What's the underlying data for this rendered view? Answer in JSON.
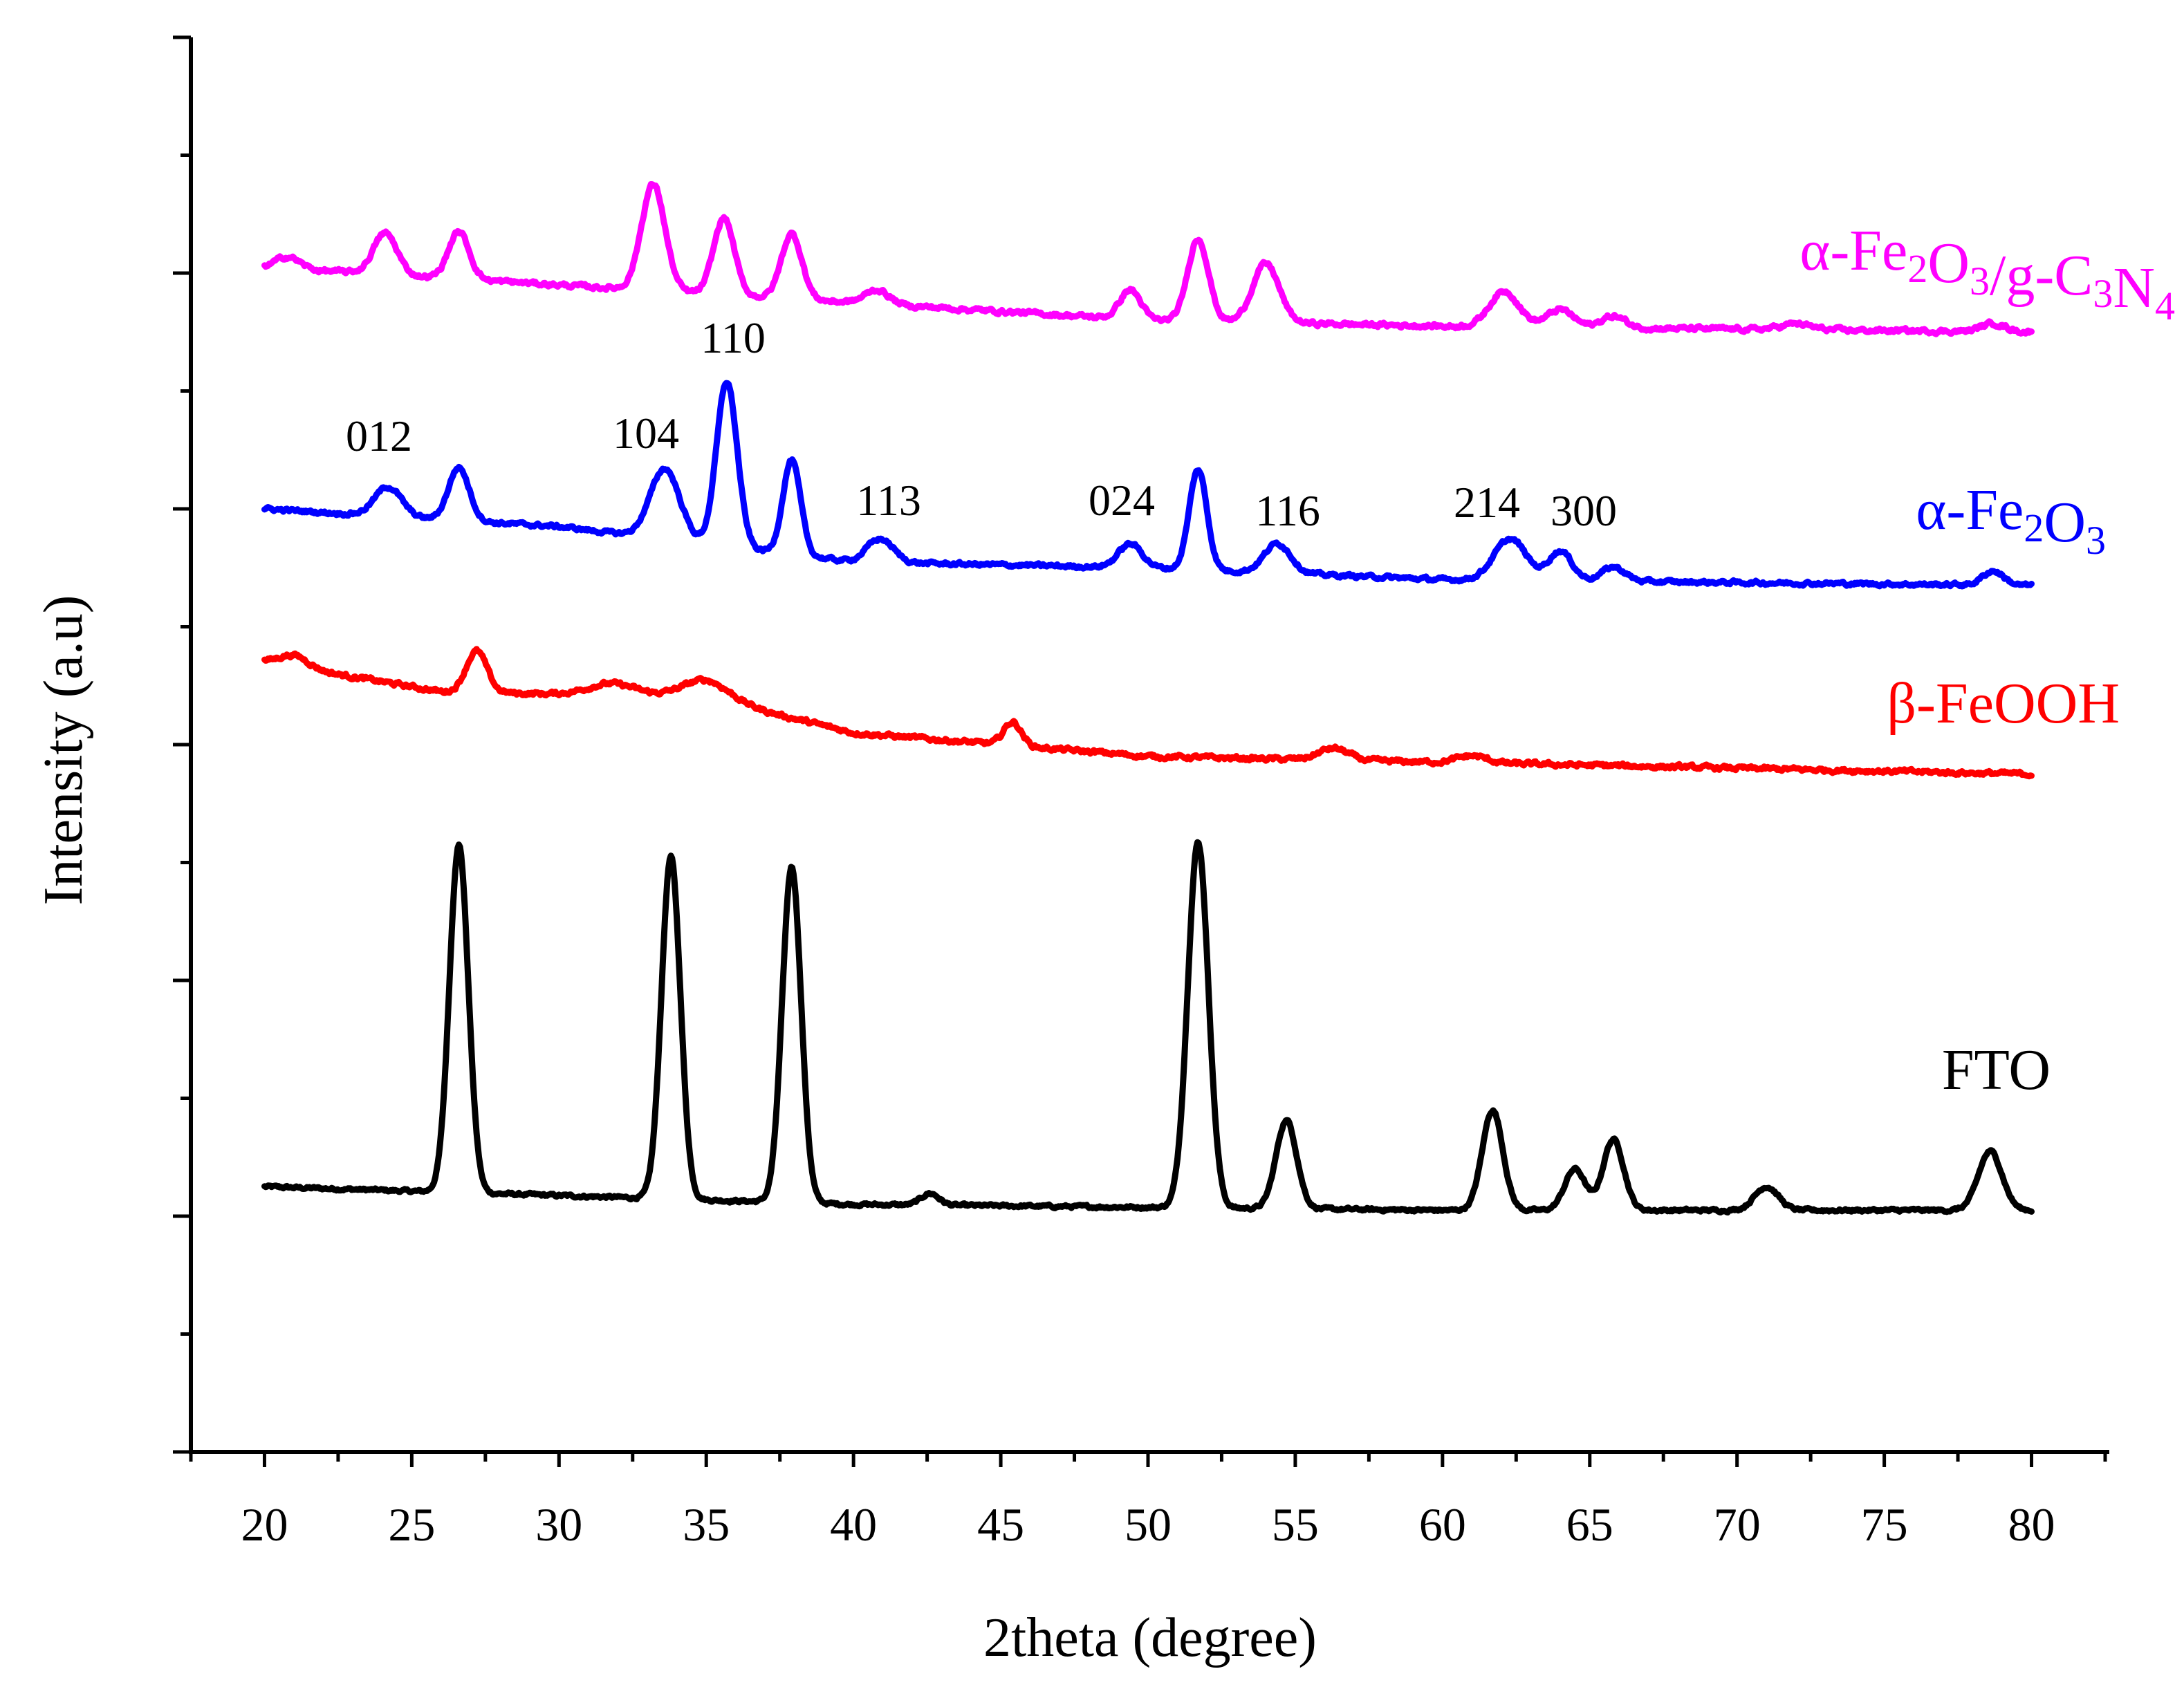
{
  "chart_data": {
    "type": "line",
    "title": "",
    "xlabel": "2theta (degree)",
    "ylabel": "Intensity (a.u)",
    "xlim": [
      17.5,
      82.5
    ],
    "ylim": [
      0,
      12
    ],
    "x_ticks": [
      "20",
      "25",
      "30",
      "35",
      "40",
      "45",
      "50",
      "55",
      "60",
      "65",
      "70",
      "75",
      "80"
    ],
    "peak_labels": [
      "012",
      "104",
      "110",
      "113",
      "024",
      "116",
      "214",
      "300"
    ],
    "series": [
      {
        "name": "FTO",
        "label_parts": [
          {
            "t": "FTO"
          }
        ],
        "color": "#000000",
        "baseline": [
          [
            20,
            2.25
          ],
          [
            40,
            2.1
          ],
          [
            60,
            2.05
          ],
          [
            80,
            2.05
          ]
        ],
        "peaks": [
          [
            26.6,
            2.95,
            0.32
          ],
          [
            33.8,
            2.9,
            0.32
          ],
          [
            37.9,
            2.85,
            0.32
          ],
          [
            42.6,
            0.1,
            0.3
          ],
          [
            51.7,
            3.1,
            0.35
          ],
          [
            54.7,
            0.75,
            0.35
          ],
          [
            61.7,
            0.85,
            0.35
          ],
          [
            64.5,
            0.35,
            0.35
          ],
          [
            65.8,
            0.6,
            0.35
          ],
          [
            71.0,
            0.2,
            0.4
          ],
          [
            78.6,
            0.5,
            0.4
          ]
        ],
        "noise": 0.025
      },
      {
        "name": "β-FeOOH",
        "label_parts": [
          {
            "t": "β-FeOOH"
          }
        ],
        "color": "#ff0000",
        "baseline": [
          [
            20,
            6.7
          ],
          [
            26,
            6.45
          ],
          [
            35,
            6.4
          ],
          [
            40,
            6.1
          ],
          [
            50,
            5.9
          ],
          [
            60,
            5.85
          ],
          [
            80,
            5.75
          ]
        ],
        "peaks": [
          [
            21.0,
            0.1,
            0.5
          ],
          [
            27.2,
            0.35,
            0.35
          ],
          [
            31.8,
            0.1,
            0.8
          ],
          [
            35.0,
            0.15,
            0.8
          ],
          [
            45.4,
            0.2,
            0.3
          ],
          [
            56.3,
            0.1,
            0.5
          ],
          [
            61.0,
            0.06,
            0.5
          ]
        ],
        "noise": 0.035
      },
      {
        "name": "α-Fe2O3",
        "label_parts": [
          {
            "t": "α-Fe"
          },
          {
            "t": "2",
            "sub": true
          },
          {
            "t": "O"
          },
          {
            "t": "3",
            "sub": true
          }
        ],
        "color": "#0000ff",
        "baseline": [
          [
            20,
            8.0
          ],
          [
            30,
            7.85
          ],
          [
            40,
            7.55
          ],
          [
            50,
            7.5
          ],
          [
            60,
            7.4
          ],
          [
            80,
            7.35
          ]
        ],
        "peaks": [
          [
            24.2,
            0.25,
            0.45
          ],
          [
            26.6,
            0.45,
            0.35
          ],
          [
            33.6,
            0.6,
            0.5
          ],
          [
            35.7,
            1.4,
            0.35
          ],
          [
            37.9,
            0.8,
            0.3
          ],
          [
            40.9,
            0.2,
            0.45
          ],
          [
            49.4,
            0.2,
            0.4
          ],
          [
            51.7,
            0.85,
            0.3
          ],
          [
            54.4,
            0.25,
            0.45
          ],
          [
            62.3,
            0.35,
            0.55
          ],
          [
            64.0,
            0.25,
            0.4
          ],
          [
            65.8,
            0.12,
            0.4
          ],
          [
            78.7,
            0.12,
            0.35
          ]
        ],
        "noise": 0.03
      },
      {
        "name": "α-Fe2O3/g-C3N4",
        "label_parts": [
          {
            "t": "α-Fe"
          },
          {
            "t": "2",
            "sub": true
          },
          {
            "t": "O"
          },
          {
            "t": "3",
            "sub": true
          },
          {
            "t": "/g-C"
          },
          {
            "t": "3",
            "sub": true
          },
          {
            "t": "N"
          },
          {
            "t": "4",
            "sub": true
          }
        ],
        "color": "#ff00ff",
        "baseline": [
          [
            20,
            10.05
          ],
          [
            30,
            9.9
          ],
          [
            40,
            9.75
          ],
          [
            50,
            9.6
          ],
          [
            60,
            9.55
          ],
          [
            80,
            9.5
          ]
        ],
        "peaks": [
          [
            20.8,
            0.1,
            0.4
          ],
          [
            24.1,
            0.35,
            0.4
          ],
          [
            26.6,
            0.4,
            0.35
          ],
          [
            33.2,
            0.9,
            0.4
          ],
          [
            35.6,
            0.65,
            0.35
          ],
          [
            37.9,
            0.55,
            0.35
          ],
          [
            40.8,
            0.12,
            0.4
          ],
          [
            49.4,
            0.25,
            0.35
          ],
          [
            51.7,
            0.7,
            0.35
          ],
          [
            54.0,
            0.5,
            0.45
          ],
          [
            62.1,
            0.3,
            0.5
          ],
          [
            64.0,
            0.15,
            0.45
          ],
          [
            65.8,
            0.1,
            0.4
          ],
          [
            72.0,
            0.05,
            0.5
          ],
          [
            78.7,
            0.07,
            0.4
          ]
        ],
        "noise": 0.035
      }
    ]
  }
}
